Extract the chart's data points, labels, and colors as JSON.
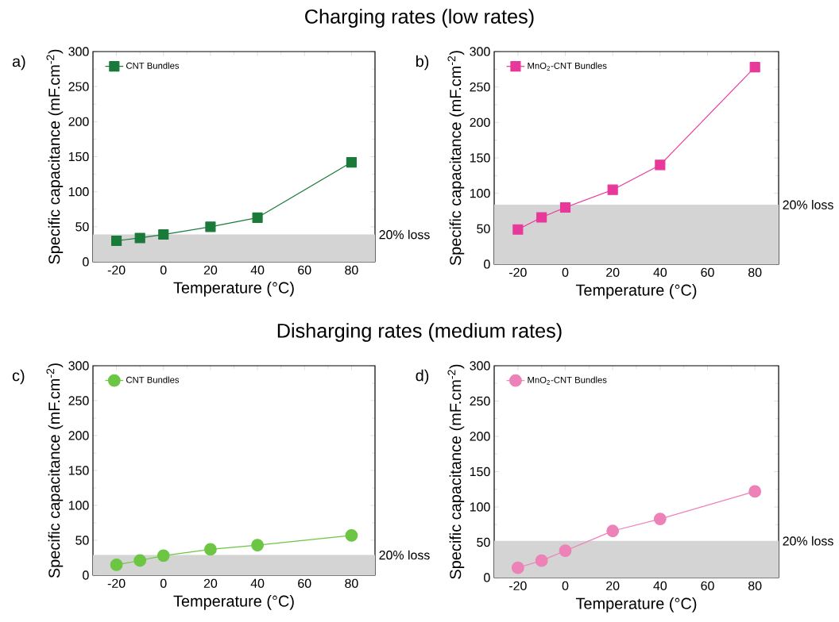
{
  "chart_data": [
    {
      "type": "line",
      "title": "Charging rates (low rates)",
      "xlabel": "Temperature (°C)",
      "ylabel": "Specific capacitance (mF.cm$^{-2}$)",
      "annotations": [
        "a)"
      ],
      "x": [
        -20,
        -10,
        0,
        20,
        40,
        80
      ],
      "xlim": [
        -30,
        90
      ],
      "ylim": [
        0,
        300
      ],
      "xticks": [
        -20,
        0,
        20,
        40,
        60,
        80
      ],
      "yticks": [
        0,
        50,
        100,
        150,
        200,
        250,
        300
      ],
      "marker": "square",
      "legend": "top left",
      "grid": false,
      "series": [
        {
          "name": "CNT Bundles",
          "color": "#1a7a3a",
          "values": [
            30,
            34,
            39,
            50,
            63,
            142
          ]
        }
      ],
      "bands": [
        {
          "axis": "y",
          "from": 0,
          "to": 39,
          "label": "20% loss",
          "color": "#d4d4d4"
        }
      ]
    },
    {
      "type": "line",
      "xlabel": "Temperature (°C)",
      "ylabel": "Specific capacitance (mF.cm$^{-2}$)",
      "annotations": [
        "b)"
      ],
      "x": [
        -20,
        -10,
        0,
        20,
        40,
        80
      ],
      "xlim": [
        -30,
        90
      ],
      "ylim": [
        0,
        300
      ],
      "xticks": [
        -20,
        0,
        20,
        40,
        60,
        80
      ],
      "yticks": [
        0,
        50,
        100,
        150,
        200,
        250,
        300
      ],
      "marker": "square",
      "legend": "top left",
      "grid": false,
      "series": [
        {
          "name": "MnO$_{2}$-CNT Bundles",
          "color": "#e8389a",
          "values": [
            49,
            66,
            80,
            105,
            140,
            278
          ]
        }
      ],
      "bands": [
        {
          "axis": "y",
          "from": 0,
          "to": 84,
          "label": "20% loss",
          "color": "#d4d4d4"
        }
      ]
    },
    {
      "type": "line",
      "title": "Disharging rates (medium rates)",
      "xlabel": "Temperature (°C)",
      "ylabel": "Specific capacitance (mF.cm$^{-2}$)",
      "annotations": [
        "c)"
      ],
      "x": [
        -20,
        -10,
        0,
        20,
        40,
        80
      ],
      "xlim": [
        -30,
        90
      ],
      "ylim": [
        0,
        300
      ],
      "xticks": [
        -20,
        0,
        20,
        40,
        60,
        80
      ],
      "yticks": [
        0,
        50,
        100,
        150,
        200,
        250,
        300
      ],
      "marker": "circle",
      "legend": "top left",
      "grid": false,
      "series": [
        {
          "name": "CNT Bundles",
          "color": "#6cc644",
          "values": [
            15,
            21,
            28,
            37,
            43,
            57
          ]
        }
      ],
      "bands": [
        {
          "axis": "y",
          "from": 0,
          "to": 29,
          "label": "20% loss",
          "color": "#d4d4d4"
        }
      ]
    },
    {
      "type": "line",
      "xlabel": "Temperature (°C)",
      "ylabel": "Specific capacitance (mF.cm$^{-2}$)",
      "annotations": [
        "d)"
      ],
      "x": [
        -20,
        -10,
        0,
        20,
        40,
        80
      ],
      "xlim": [
        -30,
        90
      ],
      "ylim": [
        0,
        300
      ],
      "xticks": [
        -20,
        0,
        20,
        40,
        60,
        80
      ],
      "yticks": [
        0,
        50,
        100,
        150,
        200,
        250,
        300
      ],
      "marker": "circle",
      "legend": "top left",
      "grid": false,
      "series": [
        {
          "name": "MnO$_{2}$-CNT Bundles",
          "color": "#ec82b8",
          "values": [
            14,
            24,
            38,
            66,
            83,
            122
          ]
        }
      ],
      "bands": [
        {
          "axis": "y",
          "from": 0,
          "to": 52,
          "label": "20% loss",
          "color": "#d4d4d4"
        }
      ]
    }
  ]
}
